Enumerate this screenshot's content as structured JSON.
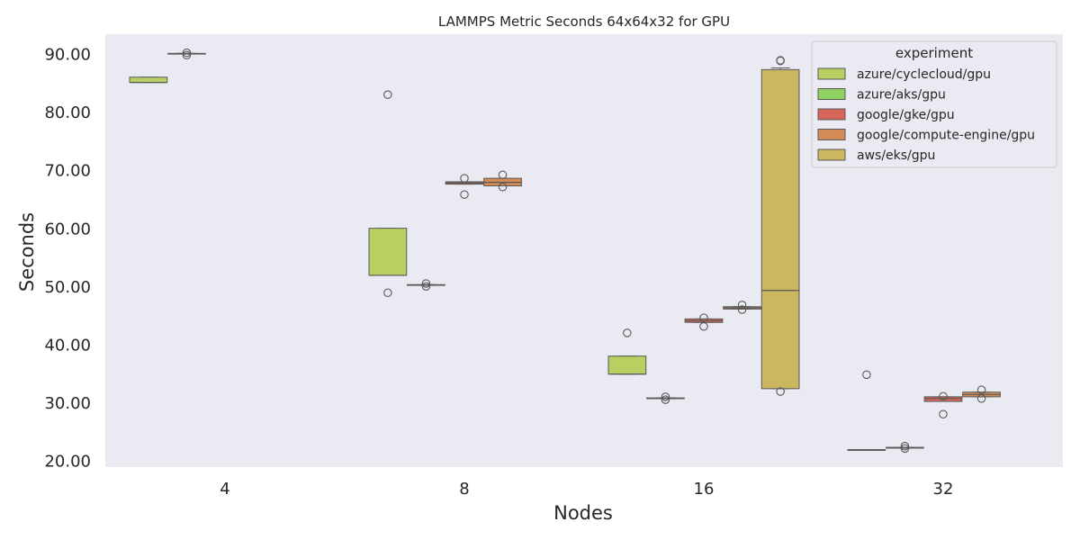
{
  "chart_data": {
    "type": "box",
    "title": "LAMMPS Metric Seconds 64x64x32 for GPU",
    "xlabel": "Nodes",
    "ylabel": "Seconds",
    "categories": [
      "4",
      "8",
      "16",
      "32"
    ],
    "ylim": [
      19,
      93.5
    ],
    "yticks": [
      20,
      30,
      40,
      50,
      60,
      70,
      80,
      90
    ],
    "ytick_labels": [
      "20.00",
      "30.00",
      "40.00",
      "50.00",
      "60.00",
      "70.00",
      "80.00",
      "90.00"
    ],
    "grid": false,
    "legend": {
      "title": "experiment",
      "placement": "top-right"
    },
    "series": [
      {
        "name": "azure/cyclecloud/gpu",
        "color": "#b8cf62",
        "boxes": [
          {
            "category": "4",
            "q1": 85.2,
            "median": 85.2,
            "q3": 86.1,
            "whisker_low": 85.2,
            "whisker_high": 86.1,
            "outliers": []
          },
          {
            "category": "8",
            "q1": 52.0,
            "median": 52.0,
            "q3": 60.1,
            "whisker_low": 52.0,
            "whisker_high": 60.1,
            "outliers": [
              83.1,
              49.0
            ]
          },
          {
            "category": "16",
            "q1": 35.0,
            "median": 35.0,
            "q3": 38.1,
            "whisker_low": 35.0,
            "whisker_high": 38.1,
            "outliers": [
              42.1
            ]
          },
          {
            "category": "32",
            "q1": 22.0,
            "median": 22.0,
            "q3": 22.0,
            "whisker_low": 22.0,
            "whisker_high": 22.0,
            "outliers": [
              34.9
            ]
          }
        ]
      },
      {
        "name": "azure/aks/gpu",
        "color": "#8fd163",
        "boxes": [
          {
            "category": "4",
            "q1": 90.1,
            "median": 90.1,
            "q3": 90.2,
            "whisker_low": 90.1,
            "whisker_high": 90.2,
            "outliers": [
              90.3,
              89.9
            ]
          },
          {
            "category": "8",
            "q1": 50.3,
            "median": 50.35,
            "q3": 50.4,
            "whisker_low": 50.3,
            "whisker_high": 50.4,
            "outliers": [
              50.6,
              50.1
            ]
          },
          {
            "category": "16",
            "q1": 30.8,
            "median": 30.85,
            "q3": 30.9,
            "whisker_low": 30.8,
            "whisker_high": 30.9,
            "outliers": [
              31.1,
              30.6
            ]
          },
          {
            "category": "32",
            "q1": 22.3,
            "median": 22.3,
            "q3": 22.4,
            "whisker_low": 22.3,
            "whisker_high": 22.4,
            "outliers": [
              22.6,
              22.2
            ]
          }
        ]
      },
      {
        "name": "google/gke/gpu",
        "color": "#d6665c",
        "boxes": [
          {
            "category": "8",
            "q1": 67.7,
            "median": 67.9,
            "q3": 68.1,
            "whisker_low": 67.7,
            "whisker_high": 68.1,
            "outliers": [
              68.7,
              65.9
            ]
          },
          {
            "category": "16",
            "q1": 43.9,
            "median": 44.2,
            "q3": 44.5,
            "whisker_low": 43.9,
            "whisker_high": 44.5,
            "outliers": [
              44.7,
              43.2
            ]
          },
          {
            "category": "32",
            "q1": 30.3,
            "median": 30.8,
            "q3": 31.1,
            "whisker_low": 30.3,
            "whisker_high": 31.1,
            "outliers": [
              31.2,
              28.1
            ]
          }
        ]
      },
      {
        "name": "google/compute-engine/gpu",
        "color": "#d48b58",
        "boxes": [
          {
            "category": "8",
            "q1": 67.4,
            "median": 68.0,
            "q3": 68.7,
            "whisker_low": 67.4,
            "whisker_high": 68.7,
            "outliers": [
              69.3,
              67.2
            ]
          },
          {
            "category": "16",
            "q1": 46.2,
            "median": 46.4,
            "q3": 46.6,
            "whisker_low": 46.2,
            "whisker_high": 46.6,
            "outliers": [
              46.9,
              46.1
            ]
          },
          {
            "category": "32",
            "q1": 31.1,
            "median": 31.5,
            "q3": 31.9,
            "whisker_low": 31.1,
            "whisker_high": 31.9,
            "outliers": [
              32.3,
              30.8
            ]
          }
        ]
      },
      {
        "name": "aws/eks/gpu",
        "color": "#cbb75f",
        "boxes": [
          {
            "category": "16",
            "q1": 32.5,
            "median": 49.4,
            "q3": 87.4,
            "whisker_low": 32.5,
            "whisker_high": 87.7,
            "outliers": [
              89.0,
              88.9,
              32.0
            ]
          }
        ]
      }
    ]
  }
}
